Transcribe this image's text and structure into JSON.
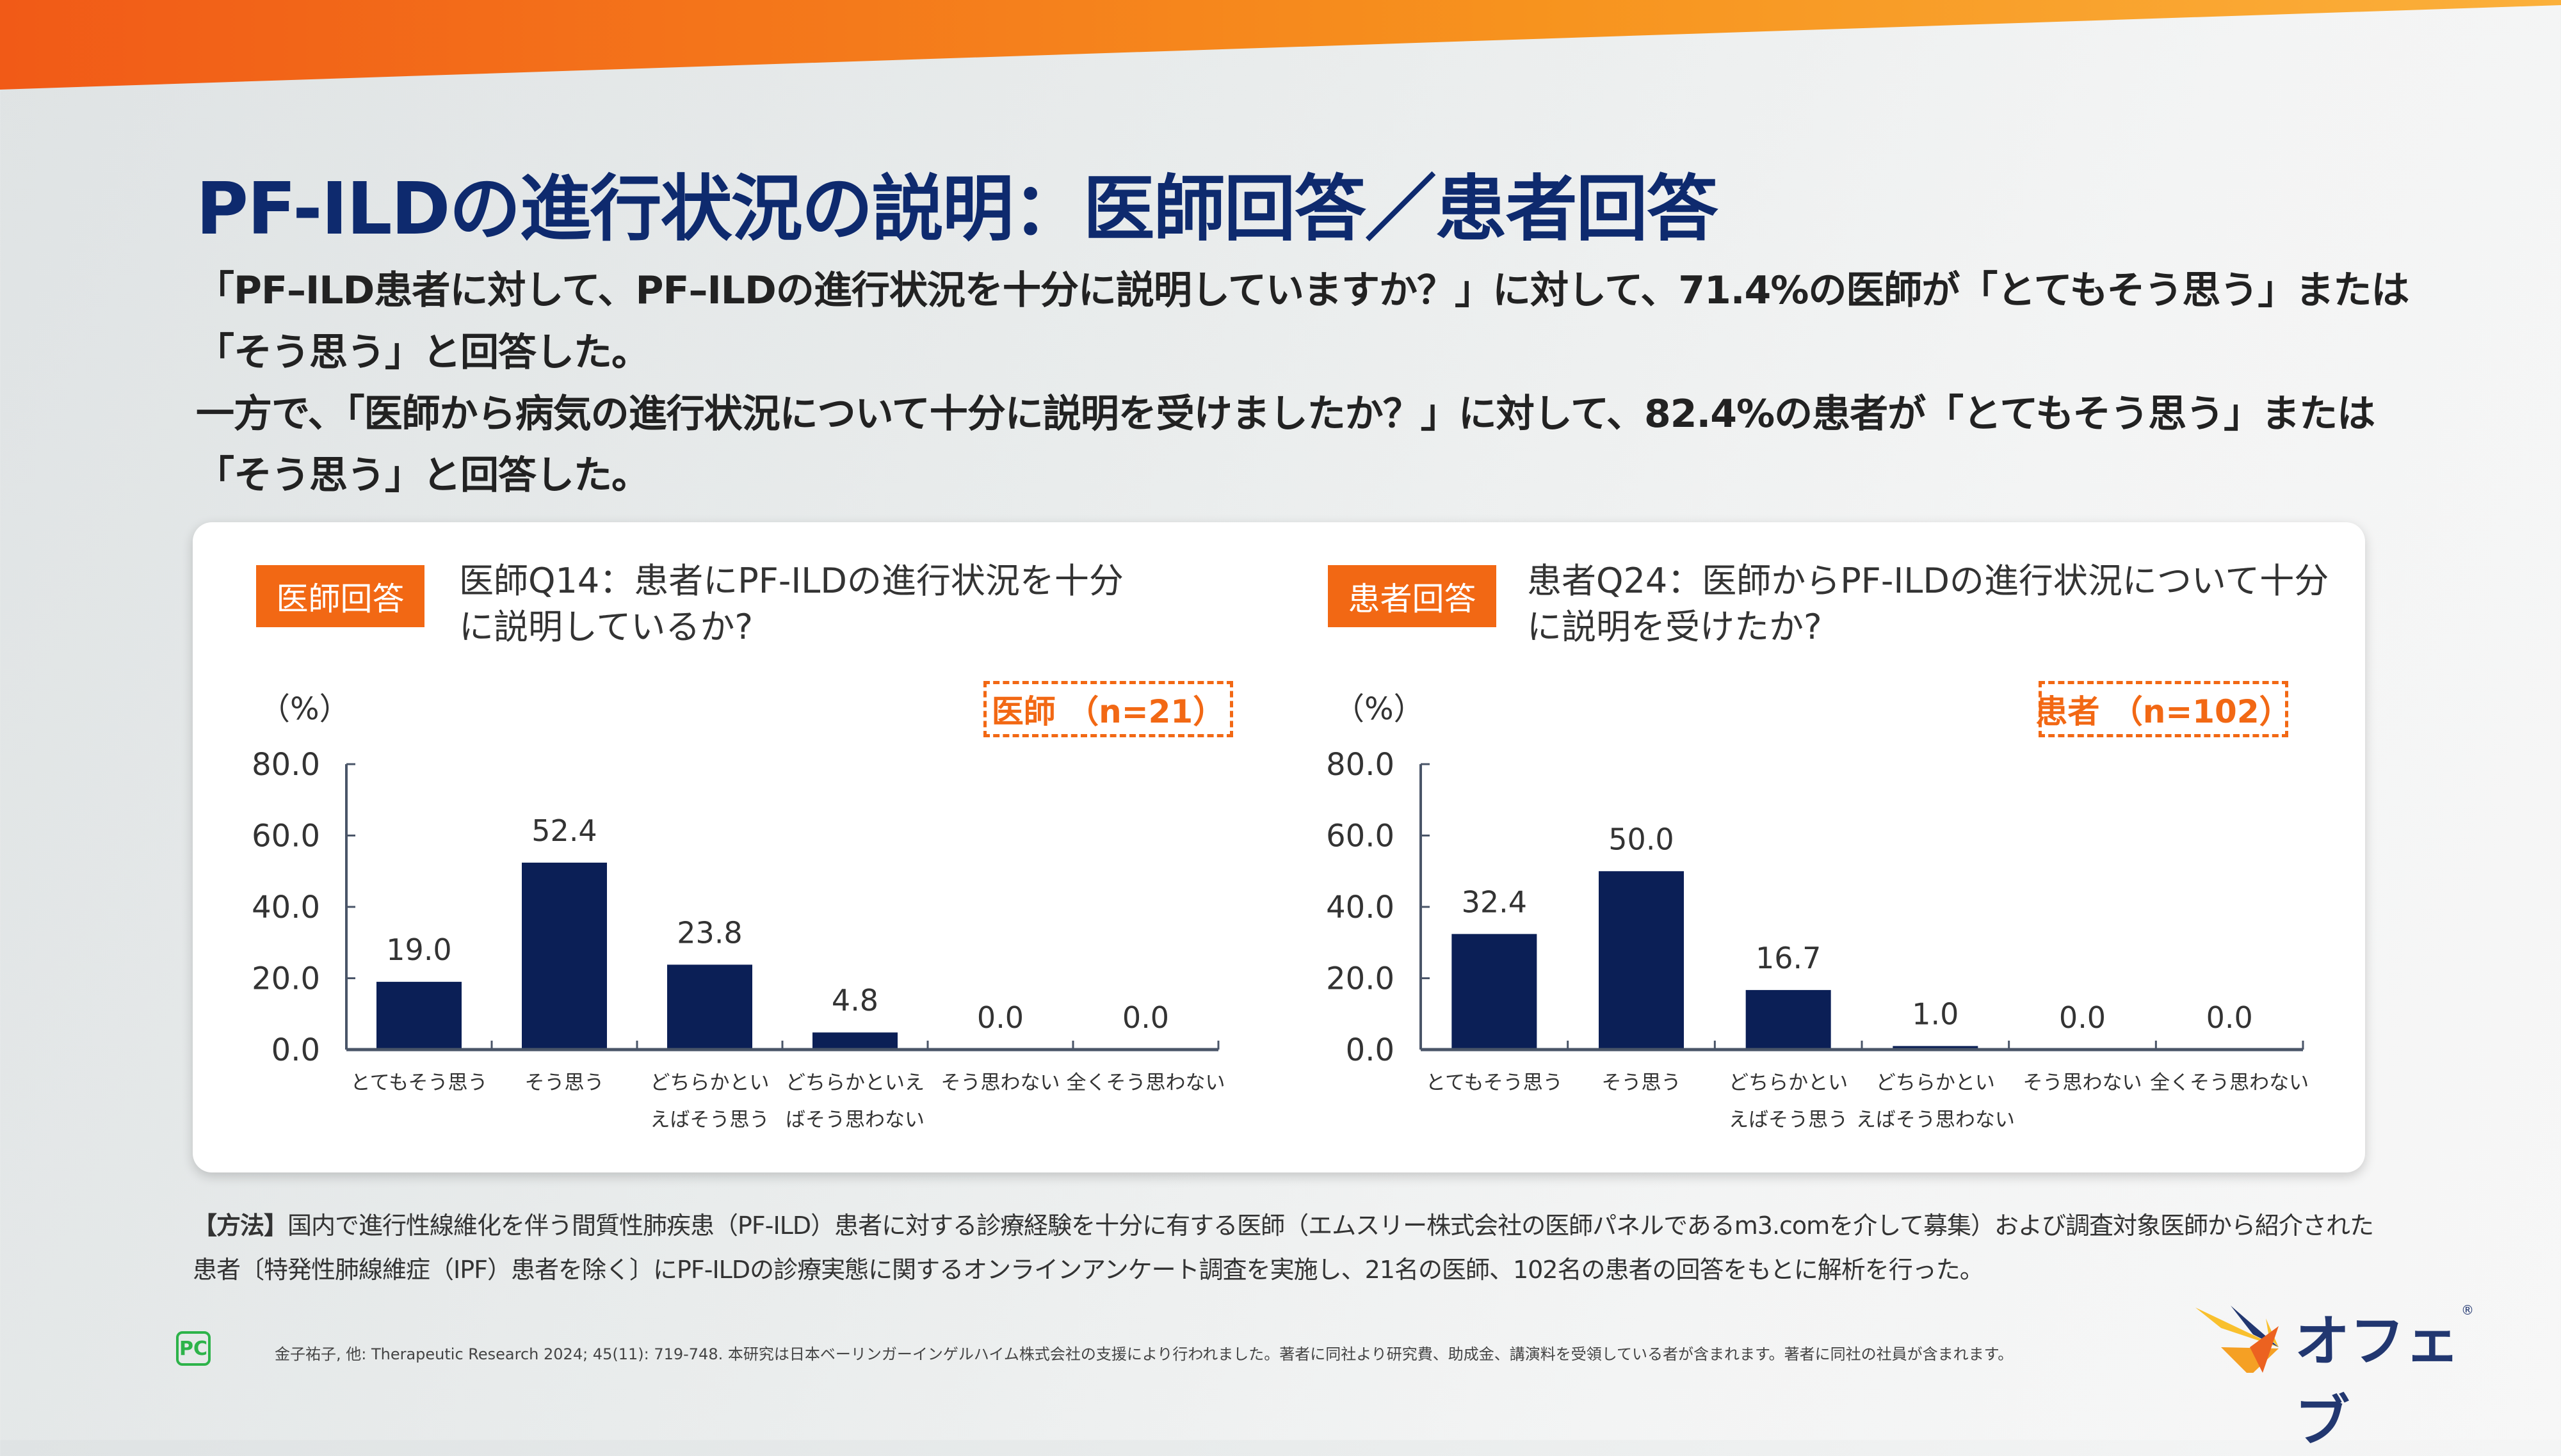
{
  "title": "PF-ILDの進行状況の説明：医師回答／患者回答",
  "lead": [
    "「PF–ILD患者に対して、PF–ILDの進行状況を十分に説明していますか？」に対して、71.4%の医師が「とてもそう思う」または",
    "「そう思う」と回答した。",
    "一方で、「医師から病気の進行状況について十分に説明を受けましたか？」に対して、82.4%の患者が「とてもそう思う」または",
    "「そう思う」と回答した。"
  ],
  "panels": [
    {
      "badge": "医師回答",
      "question": [
        "医師Q14：患者にPF-ILDの進行状況を十分",
        "に説明しているか?"
      ],
      "legend": "医師 （n=21）",
      "unit": "（%）"
    },
    {
      "badge": "患者回答",
      "question": [
        "患者Q24：医師からPF-ILDの進行状況について十分",
        "に説明を受けたか?"
      ],
      "legend": "患者 （n=102）",
      "unit": "（%）"
    }
  ],
  "chart_data": [
    {
      "type": "bar",
      "title": "医師Q14：患者にPF-ILDの進行状況を十分に説明しているか?",
      "ylabel": "（%）",
      "ylim": [
        0,
        80
      ],
      "yticks": [
        "0.0",
        "20.0",
        "40.0",
        "60.0",
        "80.0"
      ],
      "categories": [
        [
          "とてもそう思う"
        ],
        [
          "そう思う"
        ],
        [
          "どちらかとい",
          "えばそう思う"
        ],
        [
          "どちらかといえ",
          "ばそう思わない"
        ],
        [
          "そう思わない"
        ],
        [
          "全くそう思わない"
        ]
      ],
      "values": [
        19.0,
        52.4,
        23.8,
        4.8,
        0.0,
        0.0
      ],
      "labels": [
        "19.0",
        "52.4",
        "23.8",
        "4.8",
        "0.0",
        "0.0"
      ],
      "legend": "医師 （n=21）",
      "color": "#0b1f56"
    },
    {
      "type": "bar",
      "title": "患者Q24：医師からPF-ILDの進行状況について十分に説明を受けたか?",
      "ylabel": "（%）",
      "ylim": [
        0,
        80
      ],
      "yticks": [
        "0.0",
        "20.0",
        "40.0",
        "60.0",
        "80.0"
      ],
      "categories": [
        [
          "とてもそう思う"
        ],
        [
          "そう思う"
        ],
        [
          "どちらかとい",
          "えばそう思う"
        ],
        [
          "どちらかとい",
          "えばそう思わない"
        ],
        [
          "そう思わない"
        ],
        [
          "全くそう思わない"
        ]
      ],
      "values": [
        32.4,
        50.0,
        16.7,
        1.0,
        0.0,
        0.0
      ],
      "labels": [
        "32.4",
        "50.0",
        "16.7",
        "1.0",
        "0.0",
        "0.0"
      ],
      "legend": "患者 （n=102）",
      "color": "#0b1f56"
    }
  ],
  "method": {
    "label": "【方法】",
    "line1": "国内で進行性線維化を伴う間質性肺疾患（PF-ILD）患者に対する診療経験を十分に有する医師（エムスリー株式会社の医師パネルであるm3.comを介して募集）および調査対象医師から紹介された",
    "line2": "患者〔特発性肺線維症（IPF）患者を除く〕にPF-ILDの診療実態に関するオンラインアンケート調査を実施し、21名の医師、102名の患者の回答をもとに解析を行った。"
  },
  "footnote": "金子祐子, 他: Therapeutic Research 2024; 45(11): 719-748.  本研究は日本ベーリンガーインゲルハイム株式会社の支援により行われました。著者に同社より研究費、助成金、講演料を受領している者が含まれます。著者に同社の社員が含まれます。",
  "pc_mark": "PC",
  "logo": {
    "text": "オフェブ",
    "reg": "®"
  },
  "colors": {
    "accent": "#f26814",
    "navy": "#0e2a6e",
    "bar": "#0b1f56"
  }
}
